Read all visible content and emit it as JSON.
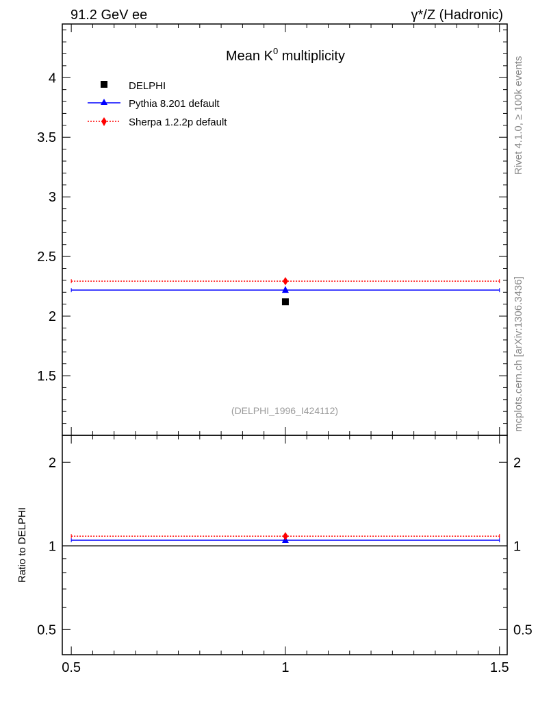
{
  "header": {
    "left": "91.2 GeV ee",
    "right": "γ*/Z (Hadronic)"
  },
  "side_labels": {
    "rivet": "Rivet 4.1.0, ≥ 100k events",
    "mcplots": "mcplots.cern.ch [arXiv:1306.3436]"
  },
  "colors": {
    "data": "#000000",
    "pythia": "#0000ff",
    "sherpa": "#ff0000",
    "watermark": "#999999"
  },
  "chart_data": [
    {
      "type": "scatter",
      "title": "Mean K⁰ multiplicity",
      "title_base": "Mean K",
      "title_sup": "0",
      "title_rest": " multiplicity",
      "annotation": "(DELPHI_1996_I424112)",
      "xlim": [
        0.479,
        1.518
      ],
      "ylim": [
        1.0,
        4.45
      ],
      "yscale": "linear",
      "x_ticks": [
        0.5,
        1,
        1.5
      ],
      "y_ticks": [
        1.5,
        2,
        2.5,
        3,
        3.5,
        4
      ],
      "y_tick_labels": [
        "1.5",
        "2",
        "2.5",
        "3",
        "3.5",
        "4"
      ],
      "legend_position": "top-left",
      "series": [
        {
          "name": "DELPHI",
          "marker": "square",
          "x": [
            1
          ],
          "y": [
            2.12
          ],
          "xerr": [
            0
          ]
        },
        {
          "name": "Pythia 8.201 default",
          "marker": "triangle",
          "line": "solid",
          "x": [
            1
          ],
          "y": [
            2.218
          ],
          "xrange": [
            0.5,
            1.5
          ]
        },
        {
          "name": "Sherpa 1.2.2p default",
          "marker": "diamond",
          "line": "dotted",
          "x": [
            1
          ],
          "y": [
            2.293
          ],
          "xrange": [
            0.5,
            1.5
          ]
        }
      ]
    },
    {
      "type": "scatter",
      "ylabel": "Ratio to DELPHI",
      "xlim": [
        0.479,
        1.518
      ],
      "ylim": [
        0.406,
        2.5
      ],
      "yscale": "log",
      "x_ticks": [
        0.5,
        1,
        1.5
      ],
      "x_tick_labels": [
        "0.5",
        "1",
        "1.5"
      ],
      "y_ticks": [
        0.5,
        1,
        2
      ],
      "y_tick_labels": [
        "0.5",
        "1",
        "2"
      ],
      "series": [
        {
          "name": "DELPHI",
          "x": [
            1
          ],
          "y": [
            1.0
          ],
          "xrange": [
            0.479,
            1.518
          ]
        },
        {
          "name": "Pythia 8.201 default",
          "x": [
            1
          ],
          "y": [
            1.048
          ],
          "xrange": [
            0.5,
            1.5
          ]
        },
        {
          "name": "Sherpa 1.2.2p default",
          "x": [
            1
          ],
          "y": [
            1.084
          ],
          "xrange": [
            0.5,
            1.5
          ]
        }
      ]
    }
  ]
}
